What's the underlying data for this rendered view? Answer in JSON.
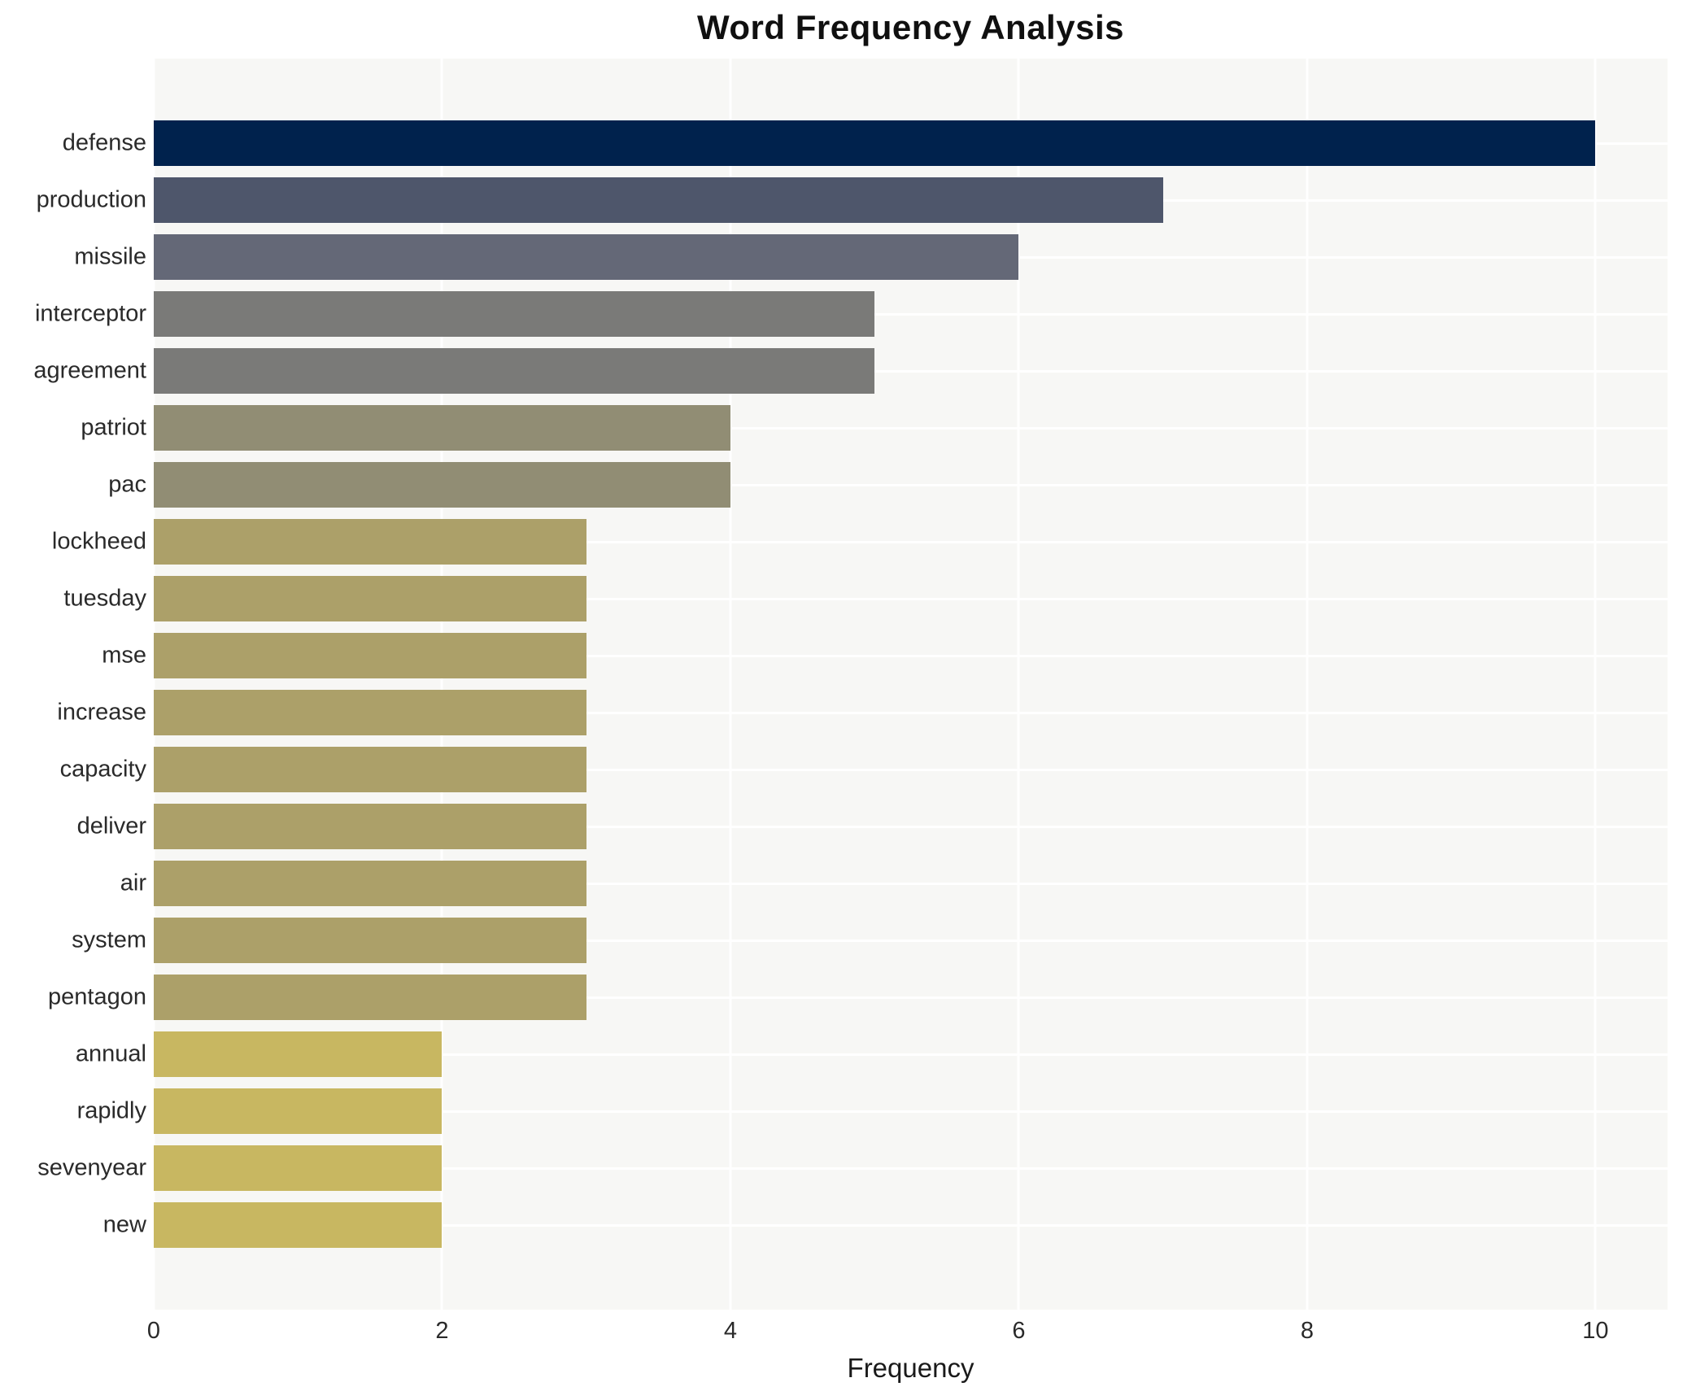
{
  "chart_data": {
    "type": "bar",
    "orientation": "horizontal",
    "title": "Word Frequency Analysis",
    "xlabel": "Frequency",
    "ylabel": "",
    "xlim": [
      0,
      10.5
    ],
    "x_ticks": [
      0,
      2,
      4,
      6,
      8,
      10
    ],
    "grid": true,
    "legend": false,
    "plot_bg_color": "#f7f7f5",
    "grid_color": "#ffffff",
    "categories": [
      "defense",
      "production",
      "missile",
      "interceptor",
      "agreement",
      "patriot",
      "pac",
      "lockheed",
      "tuesday",
      "mse",
      "increase",
      "capacity",
      "deliver",
      "air",
      "system",
      "pentagon",
      "annual",
      "rapidly",
      "sevenyear",
      "new"
    ],
    "values": [
      10,
      7,
      6,
      5,
      5,
      4,
      4,
      3,
      3,
      3,
      3,
      3,
      3,
      3,
      3,
      3,
      2,
      2,
      2,
      2
    ],
    "colors": [
      "#00224d",
      "#4e566b",
      "#646877",
      "#7a7a78",
      "#7a7a78",
      "#918d74",
      "#918d74",
      "#aca069",
      "#aca069",
      "#aca069",
      "#aca069",
      "#aca069",
      "#aca069",
      "#aca069",
      "#aca069",
      "#aca069",
      "#c8b761",
      "#c8b761",
      "#c8b761",
      "#c8b761"
    ]
  }
}
